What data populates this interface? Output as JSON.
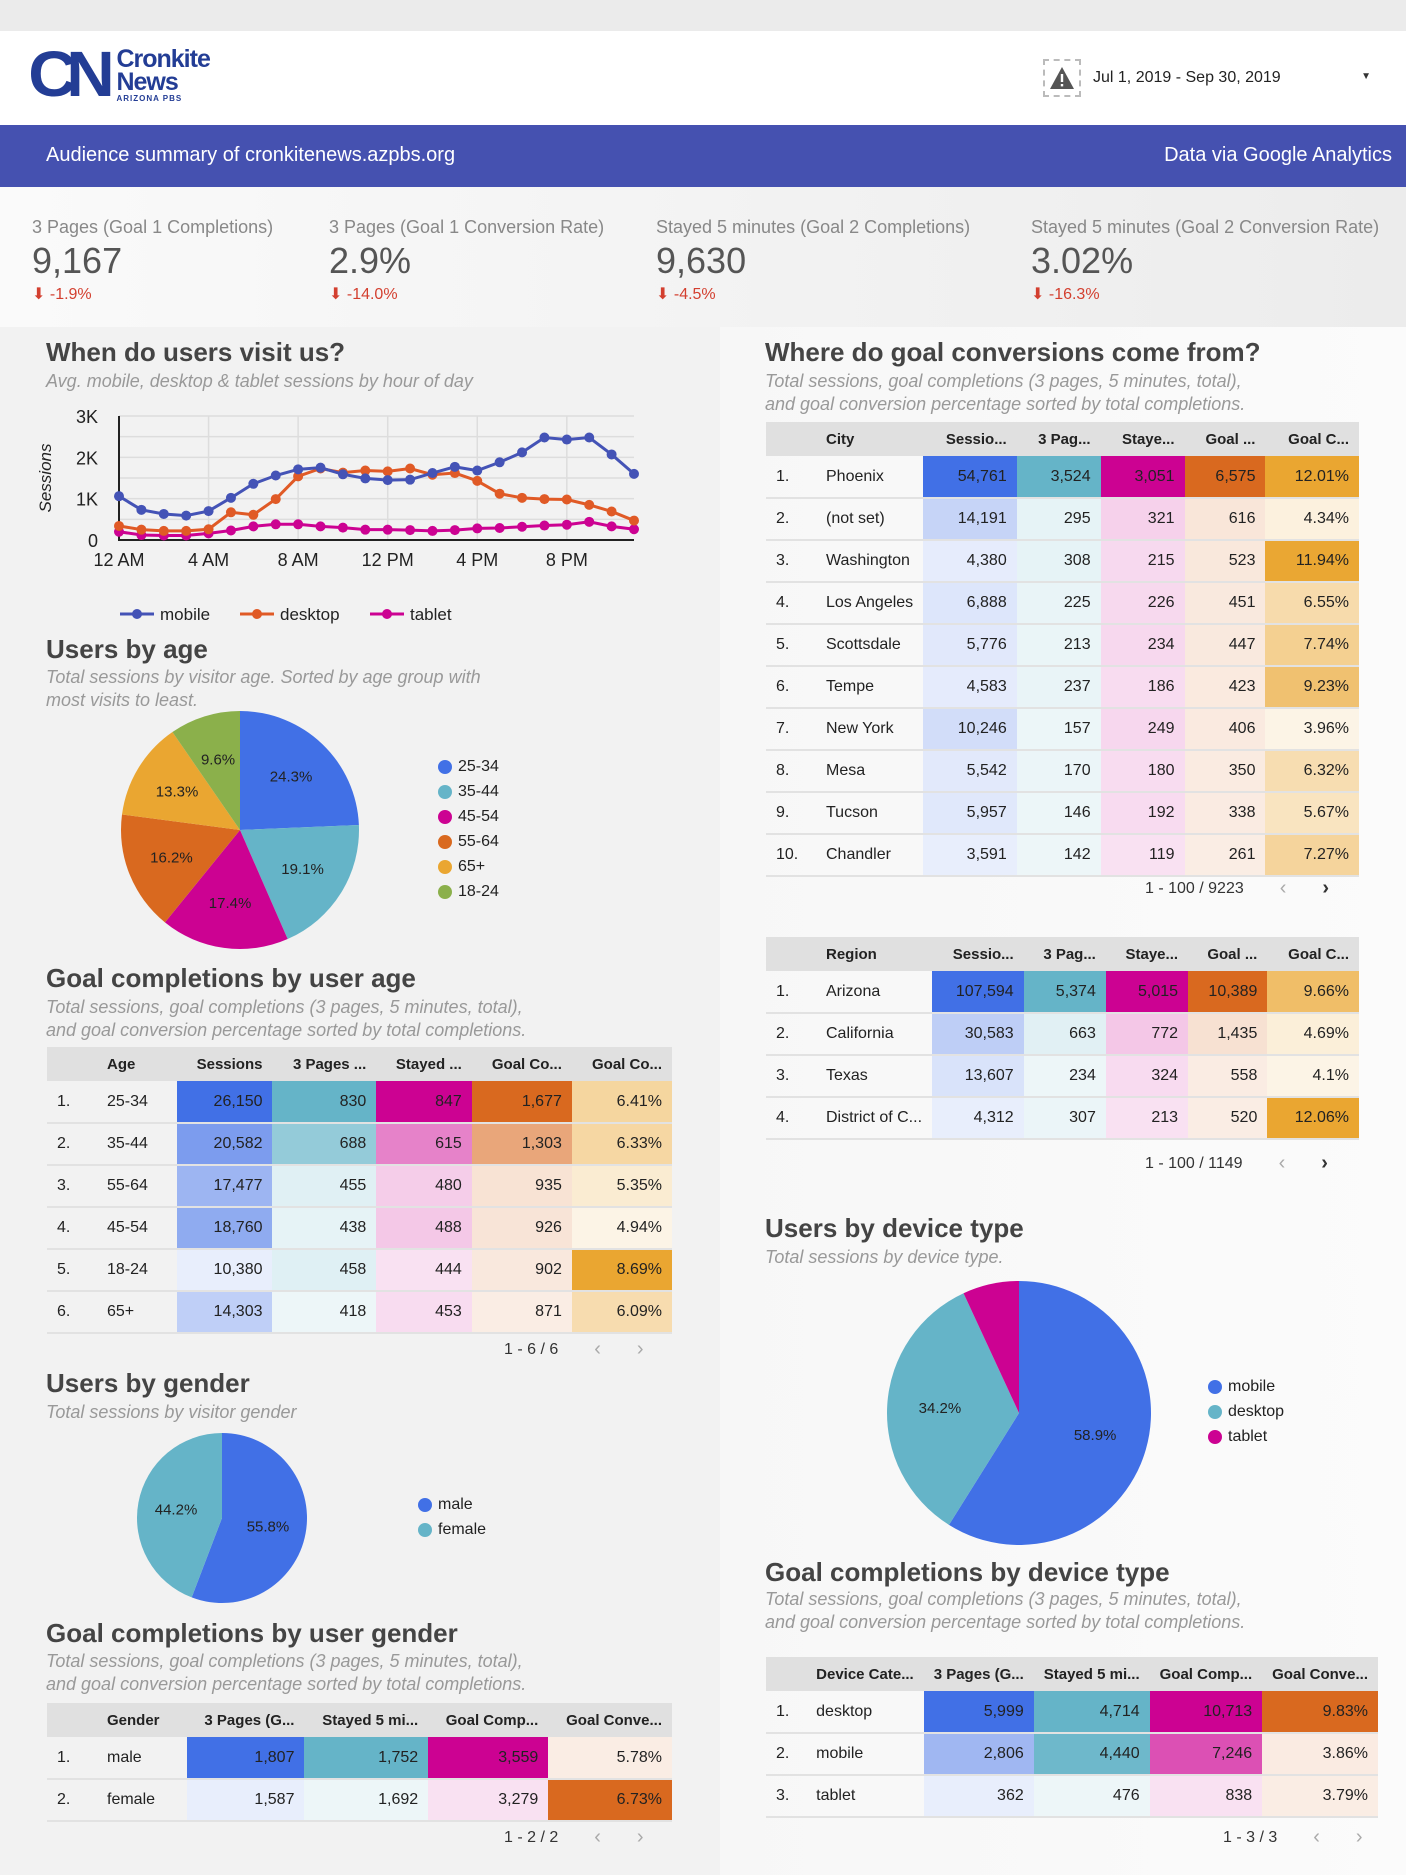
{
  "header": {
    "logo": {
      "big": "CN",
      "line1": "Cronkite",
      "line2": "News",
      "line3": "ARIZONA PBS"
    },
    "date_range": "Jul 1, 2019 - Sep 30, 2019",
    "warning_icon": "warning-triangle-icon"
  },
  "banner": {
    "left": "Audience summary of cronkitenews.azpbs.org",
    "right": "Data via Google Analytics"
  },
  "kpis": [
    {
      "label": "3 Pages (Goal 1 Completions)",
      "value": "9,167",
      "delta": "-1.9%"
    },
    {
      "label": "3 Pages (Goal 1 Conversion Rate)",
      "value": "2.9%",
      "delta": "-14.0%"
    },
    {
      "label": "Stayed 5 minutes (Goal 2 Completions)",
      "value": "9,630",
      "delta": "-4.5%"
    },
    {
      "label": "Stayed 5 minutes (Goal 2 Conversion Rate)",
      "value": "3.02%",
      "delta": "-16.3%"
    }
  ],
  "colors": {
    "blue": "#4170e6",
    "teal": "#65b4c8",
    "magenta": "#cc0292",
    "orange": "#d9691f",
    "yellow": "#eaa631",
    "green": "#8bb04b",
    "mobile_line": "#4453b6",
    "desktop_line": "#e05a26",
    "tablet_line": "#cc0292"
  },
  "sections": {
    "visits": {
      "title": "When do users visit us?",
      "subtitle": "Avg. mobile, desktop & tablet sessions by hour of day"
    },
    "age": {
      "title": "Users by age",
      "subtitle1": "Total sessions by visitor age. Sorted by age group with",
      "subtitle2": "most visits to least."
    },
    "goal_age": {
      "title": "Goal completions by user age",
      "subtitle1": "Total sessions, goal completions (3 pages, 5 minutes, total),",
      "subtitle2": "and goal conversion percentage sorted by total completions."
    },
    "gender": {
      "title": "Users by gender",
      "subtitle": "Total sessions by visitor gender"
    },
    "goal_gender": {
      "title": "Goal completions by user gender",
      "subtitle1": "Total sessions, goal completions (3 pages, 5 minutes, total),",
      "subtitle2": "and goal conversion percentage sorted by total completions."
    },
    "where": {
      "title": "Where do goal conversions come from?",
      "subtitle1": "Total sessions, goal completions (3 pages, 5 minutes, total),",
      "subtitle2": "and goal conversion percentage sorted by total completions."
    },
    "device": {
      "title": "Users by device type",
      "subtitle": "Total sessions by device type."
    },
    "goal_device": {
      "title": "Goal completions by device type",
      "subtitle1": "Total sessions, goal completions (3 pages, 5 minutes, total),",
      "subtitle2": "and goal conversion percentage sorted by total completions."
    }
  },
  "tables": {
    "age": {
      "headers": [
        "",
        "Age",
        "Sessions",
        "3 Pages ...",
        "Stayed ...",
        "Goal Co...",
        "Goal Co..."
      ],
      "rows": [
        [
          "1.",
          "25-34",
          "26,150",
          "830",
          "847",
          "1,677",
          "6.41%"
        ],
        [
          "2.",
          "35-44",
          "20,582",
          "688",
          "615",
          "1,303",
          "6.33%"
        ],
        [
          "3.",
          "55-64",
          "17,477",
          "455",
          "480",
          "935",
          "5.35%"
        ],
        [
          "4.",
          "45-54",
          "18,760",
          "438",
          "488",
          "926",
          "4.94%"
        ],
        [
          "5.",
          "18-24",
          "10,380",
          "458",
          "444",
          "902",
          "8.69%"
        ],
        [
          "6.",
          "65+",
          "14,303",
          "418",
          "453",
          "871",
          "6.09%"
        ]
      ],
      "pager": "1 - 6 / 6"
    },
    "gender": {
      "headers": [
        "",
        "Gender",
        "3 Pages (G...",
        "Stayed 5 mi...",
        "Goal Comp...",
        "Goal Conve..."
      ],
      "rows": [
        [
          "1.",
          "male",
          "1,807",
          "1,752",
          "3,559",
          "5.78%"
        ],
        [
          "2.",
          "female",
          "1,587",
          "1,692",
          "3,279",
          "6.73%"
        ]
      ],
      "pager": "1 - 2 / 2"
    },
    "city": {
      "headers": [
        "",
        "City",
        "Sessio...",
        "3 Pag...",
        "Staye...",
        "Goal ...",
        "Goal C..."
      ],
      "rows": [
        [
          "1.",
          "Phoenix",
          "54,761",
          "3,524",
          "3,051",
          "6,575",
          "12.01%"
        ],
        [
          "2.",
          "(not set)",
          "14,191",
          "295",
          "321",
          "616",
          "4.34%"
        ],
        [
          "3.",
          "Washington",
          "4,380",
          "308",
          "215",
          "523",
          "11.94%"
        ],
        [
          "4.",
          "Los Angeles",
          "6,888",
          "225",
          "226",
          "451",
          "6.55%"
        ],
        [
          "5.",
          "Scottsdale",
          "5,776",
          "213",
          "234",
          "447",
          "7.74%"
        ],
        [
          "6.",
          "Tempe",
          "4,583",
          "237",
          "186",
          "423",
          "9.23%"
        ],
        [
          "7.",
          "New York",
          "10,246",
          "157",
          "249",
          "406",
          "3.96%"
        ],
        [
          "8.",
          "Mesa",
          "5,542",
          "170",
          "180",
          "350",
          "6.32%"
        ],
        [
          "9.",
          "Tucson",
          "5,957",
          "146",
          "192",
          "338",
          "5.67%"
        ],
        [
          "10.",
          "Chandler",
          "3,591",
          "142",
          "119",
          "261",
          "7.27%"
        ]
      ],
      "pager": "1 - 100 / 9223"
    },
    "region": {
      "headers": [
        "",
        "Region",
        "Sessio...",
        "3 Pag...",
        "Staye...",
        "Goal ...",
        "Goal C..."
      ],
      "rows": [
        [
          "1.",
          "Arizona",
          "107,594",
          "5,374",
          "5,015",
          "10,389",
          "9.66%"
        ],
        [
          "2.",
          "California",
          "30,583",
          "663",
          "772",
          "1,435",
          "4.69%"
        ],
        [
          "3.",
          "Texas",
          "13,607",
          "234",
          "324",
          "558",
          "4.1%"
        ],
        [
          "4.",
          "District of C...",
          "4,312",
          "307",
          "213",
          "520",
          "12.06%"
        ]
      ],
      "pager": "1 - 100 / 1149"
    },
    "device": {
      "headers": [
        "",
        "Device Cate...",
        "3 Pages (G...",
        "Stayed 5 mi...",
        "Goal Comp...",
        "Goal Conve..."
      ],
      "rows": [
        [
          "1.",
          "desktop",
          "5,999",
          "4,714",
          "10,713",
          "9.83%"
        ],
        [
          "2.",
          "mobile",
          "2,806",
          "4,440",
          "7,246",
          "3.86%"
        ],
        [
          "3.",
          "tablet",
          "362",
          "476",
          "838",
          "3.79%"
        ]
      ],
      "pager": "1 - 3 / 3"
    }
  },
  "chart_data": [
    {
      "type": "line",
      "title": "When do users visit us?",
      "xlabel": "",
      "ylabel": "Sessions",
      "x": [
        0,
        1,
        2,
        3,
        4,
        5,
        6,
        7,
        8,
        9,
        10,
        11,
        12,
        13,
        14,
        15,
        16,
        17,
        18,
        19,
        20,
        21,
        22,
        23
      ],
      "x_tick_labels": [
        "12 AM",
        "4 AM",
        "8 AM",
        "12 PM",
        "4 PM",
        "8 PM"
      ],
      "x_tick_positions": [
        0,
        4,
        8,
        12,
        16,
        20
      ],
      "y_tick_labels": [
        "0",
        "1K",
        "2K",
        "3K"
      ],
      "ylim": [
        0,
        3000
      ],
      "grid": true,
      "legend": "bottom",
      "series": [
        {
          "name": "mobile",
          "values": [
            1060,
            730,
            630,
            590,
            700,
            1020,
            1360,
            1560,
            1710,
            1750,
            1590,
            1490,
            1450,
            1460,
            1620,
            1770,
            1680,
            1880,
            2120,
            2480,
            2430,
            2480,
            2070,
            1600
          ]
        },
        {
          "name": "desktop",
          "values": [
            340,
            250,
            220,
            220,
            260,
            670,
            610,
            990,
            1540,
            1730,
            1630,
            1680,
            1660,
            1730,
            1580,
            1620,
            1430,
            1120,
            1020,
            990,
            980,
            850,
            690,
            470
          ]
        },
        {
          "name": "tablet",
          "values": [
            200,
            120,
            110,
            110,
            160,
            230,
            330,
            380,
            380,
            330,
            300,
            250,
            250,
            240,
            220,
            240,
            280,
            290,
            320,
            350,
            370,
            440,
            330,
            260
          ]
        }
      ]
    },
    {
      "type": "pie",
      "title": "Users by age",
      "legend": "right",
      "labels": [
        "25-34",
        "35-44",
        "45-54",
        "55-64",
        "65+",
        "18-24"
      ],
      "values": [
        24.3,
        19.1,
        17.4,
        16.2,
        13.3,
        9.6
      ]
    },
    {
      "type": "pie",
      "title": "Users by gender",
      "legend": "right",
      "labels": [
        "male",
        "female"
      ],
      "values": [
        55.8,
        44.2
      ]
    },
    {
      "type": "pie",
      "title": "Users by device type",
      "legend": "right",
      "labels": [
        "mobile",
        "desktop",
        "tablet"
      ],
      "values": [
        58.9,
        34.2,
        6.9
      ],
      "value_labels": [
        "58.9%",
        "34.2%",
        ""
      ]
    }
  ]
}
